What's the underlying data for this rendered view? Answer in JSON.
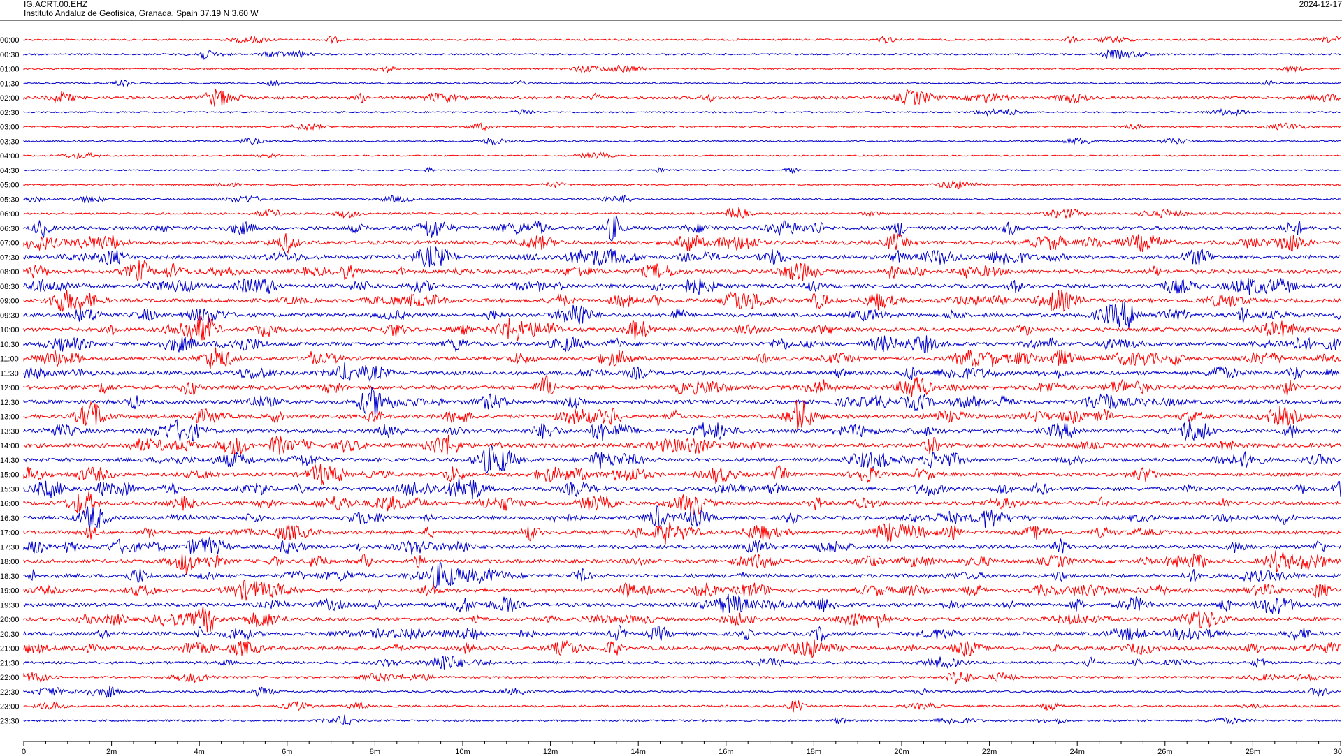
{
  "header": {
    "station": "IG.ACRT.00.EHZ",
    "institute": "Instituto Andaluz de Geofisica, Granada, Spain  37.19 N 3.60 W",
    "date": "2024-12-17"
  },
  "colors": {
    "odd_trace": "#ff0000",
    "even_trace": "#0000cc",
    "axis": "#000000",
    "background": "#ffffff"
  },
  "chart_data": {
    "type": "line",
    "title": "",
    "xlabel": "",
    "ylabel": "",
    "xlim": [
      0,
      30
    ],
    "x_unit": "m",
    "x_ticks": [
      "0",
      "2m",
      "4m",
      "6m",
      "8m",
      "10m",
      "12m",
      "14m",
      "16m",
      "18m",
      "20m",
      "22m",
      "24m",
      "26m",
      "28m",
      "30"
    ],
    "grid": false,
    "series": [
      {
        "label": "00:00",
        "color": "red",
        "activity": 0.25
      },
      {
        "label": "00:30",
        "color": "blue",
        "activity": 0.25
      },
      {
        "label": "01:00",
        "color": "red",
        "activity": 0.2
      },
      {
        "label": "01:30",
        "color": "blue",
        "activity": 0.2
      },
      {
        "label": "02:00",
        "color": "red",
        "activity": 0.6
      },
      {
        "label": "02:30",
        "color": "blue",
        "activity": 0.2
      },
      {
        "label": "03:00",
        "color": "red",
        "activity": 0.2
      },
      {
        "label": "03:30",
        "color": "blue",
        "activity": 0.2
      },
      {
        "label": "04:00",
        "color": "red",
        "activity": 0.15
      },
      {
        "label": "04:30",
        "color": "blue",
        "activity": 0.15
      },
      {
        "label": "05:00",
        "color": "red",
        "activity": 0.2
      },
      {
        "label": "05:30",
        "color": "blue",
        "activity": 0.25
      },
      {
        "label": "06:00",
        "color": "red",
        "activity": 0.35
      },
      {
        "label": "06:30",
        "color": "blue",
        "activity": 0.8
      },
      {
        "label": "07:00",
        "color": "red",
        "activity": 0.9
      },
      {
        "label": "07:30",
        "color": "blue",
        "activity": 0.9
      },
      {
        "label": "08:00",
        "color": "red",
        "activity": 0.85
      },
      {
        "label": "08:30",
        "color": "blue",
        "activity": 0.9
      },
      {
        "label": "09:00",
        "color": "red",
        "activity": 0.9
      },
      {
        "label": "09:30",
        "color": "blue",
        "activity": 0.85
      },
      {
        "label": "10:00",
        "color": "red",
        "activity": 0.85
      },
      {
        "label": "10:30",
        "color": "blue",
        "activity": 0.85
      },
      {
        "label": "11:00",
        "color": "red",
        "activity": 0.85
      },
      {
        "label": "11:30",
        "color": "blue",
        "activity": 0.85
      },
      {
        "label": "12:00",
        "color": "red",
        "activity": 0.85
      },
      {
        "label": "12:30",
        "color": "blue",
        "activity": 0.9
      },
      {
        "label": "13:00",
        "color": "red",
        "activity": 0.9
      },
      {
        "label": "13:30",
        "color": "blue",
        "activity": 0.9
      },
      {
        "label": "14:00",
        "color": "red",
        "activity": 0.9
      },
      {
        "label": "14:30",
        "color": "blue",
        "activity": 0.9
      },
      {
        "label": "15:00",
        "color": "red",
        "activity": 0.85
      },
      {
        "label": "15:30",
        "color": "blue",
        "activity": 0.9
      },
      {
        "label": "16:00",
        "color": "red",
        "activity": 0.85
      },
      {
        "label": "16:30",
        "color": "blue",
        "activity": 0.85
      },
      {
        "label": "17:00",
        "color": "red",
        "activity": 0.85
      },
      {
        "label": "17:30",
        "color": "blue",
        "activity": 0.85
      },
      {
        "label": "18:00",
        "color": "red",
        "activity": 0.85
      },
      {
        "label": "18:30",
        "color": "blue",
        "activity": 0.85
      },
      {
        "label": "19:00",
        "color": "red",
        "activity": 0.85
      },
      {
        "label": "19:30",
        "color": "blue",
        "activity": 0.85
      },
      {
        "label": "20:00",
        "color": "red",
        "activity": 0.85
      },
      {
        "label": "20:30",
        "color": "blue",
        "activity": 0.85
      },
      {
        "label": "21:00",
        "color": "red",
        "activity": 0.85
      },
      {
        "label": "21:30",
        "color": "blue",
        "activity": 0.5
      },
      {
        "label": "22:00",
        "color": "red",
        "activity": 0.4
      },
      {
        "label": "22:30",
        "color": "blue",
        "activity": 0.35
      },
      {
        "label": "23:00",
        "color": "red",
        "activity": 0.35
      },
      {
        "label": "23:30",
        "color": "blue",
        "activity": 0.3
      }
    ]
  }
}
